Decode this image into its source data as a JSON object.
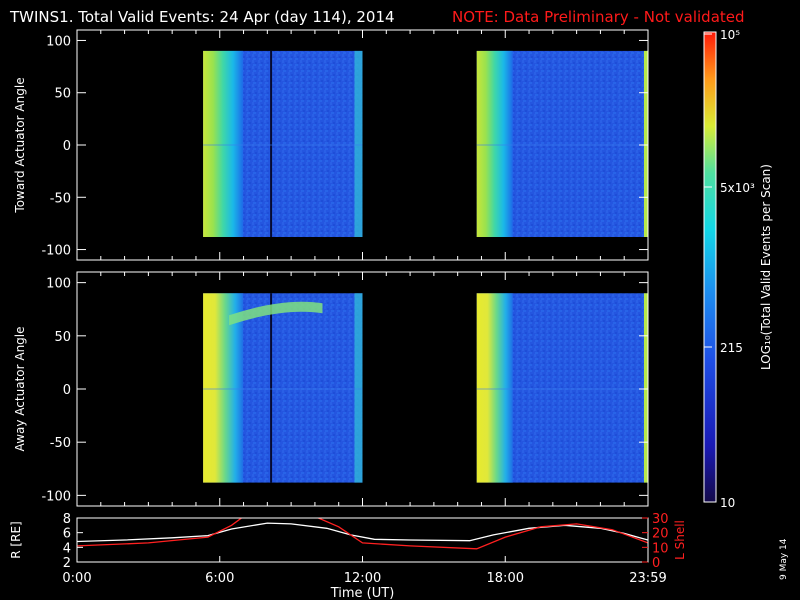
{
  "header": {
    "title": "TWINS1. Total Valid Events: 24 Apr (day 114), 2014",
    "note": "NOTE: Data Preliminary - Not validated",
    "note_color": "#ff1a1a"
  },
  "side_date": "9 May 14",
  "chart_data": [
    {
      "type": "heatmap",
      "panel": "top",
      "ylabel": "Toward Actuator Angle",
      "ylim": [
        -110,
        110
      ],
      "yticks": [
        "100",
        "50",
        "0",
        "-50",
        "-100"
      ],
      "xlim_hours": [
        0,
        24
      ],
      "data_extent_angle": [
        -88,
        90
      ],
      "data_intervals_hours": [
        [
          5.3,
          12.0
        ],
        [
          16.8,
          24.0
        ]
      ],
      "gap_hours": [
        12.0,
        16.8
      ],
      "colorscale": "LOG10(Total Valid Events per Scan)"
    },
    {
      "type": "heatmap",
      "panel": "middle",
      "ylabel": "Away Actuator Angle",
      "ylim": [
        -110,
        110
      ],
      "yticks": [
        "100",
        "50",
        "0",
        "-50",
        "-100"
      ],
      "xlim_hours": [
        0,
        24
      ],
      "data_extent_angle": [
        -88,
        90
      ],
      "data_intervals_hours": [
        [
          5.3,
          12.0
        ],
        [
          16.8,
          24.0
        ]
      ],
      "gap_hours": [
        12.0,
        16.8
      ]
    },
    {
      "type": "line",
      "panel": "orbit",
      "ylabel_left": "R [RE]",
      "ylabel_right": "L Shell",
      "ylim_left": [
        2,
        8
      ],
      "ylim_right": [
        0,
        30
      ],
      "yticks_left": [
        "8",
        "6",
        "4",
        "2"
      ],
      "yticks_right": [
        "30",
        "20",
        "10",
        "0"
      ],
      "xlabel": "Time (UT)",
      "xticks": [
        "0:00",
        "6:00",
        "12:00",
        "18:00",
        "23:59"
      ],
      "xtick_hours": [
        0,
        6,
        12,
        18,
        24
      ],
      "series": [
        {
          "name": "R",
          "color": "#ffffff",
          "x": [
            0,
            2,
            4,
            5.5,
            6.5,
            8,
            9,
            10.5,
            11.5,
            12.5,
            14,
            16.5,
            17.5,
            19,
            20.5,
            22,
            23,
            24
          ],
          "y": [
            4.8,
            5.0,
            5.3,
            5.6,
            6.5,
            7.3,
            7.2,
            6.6,
            5.7,
            5.1,
            5.0,
            4.9,
            5.7,
            6.6,
            7.0,
            6.6,
            5.9,
            5.0
          ]
        },
        {
          "name": "L Shell",
          "color": "#ff2020",
          "x": [
            0,
            3,
            5.5,
            6.5,
            7,
            9,
            10,
            11,
            12,
            14,
            16.8,
            18,
            19.5,
            21,
            22.5,
            24
          ],
          "y": [
            11,
            13,
            17,
            25,
            31,
            31,
            31,
            24,
            13,
            11,
            9,
            17,
            24,
            26,
            22,
            13
          ]
        }
      ]
    }
  ],
  "colorbar": {
    "ticks": [
      "10",
      "215",
      "5x10³",
      "10⁵"
    ],
    "label": "LOG₁₀(Total Valid Events per Scan)"
  }
}
